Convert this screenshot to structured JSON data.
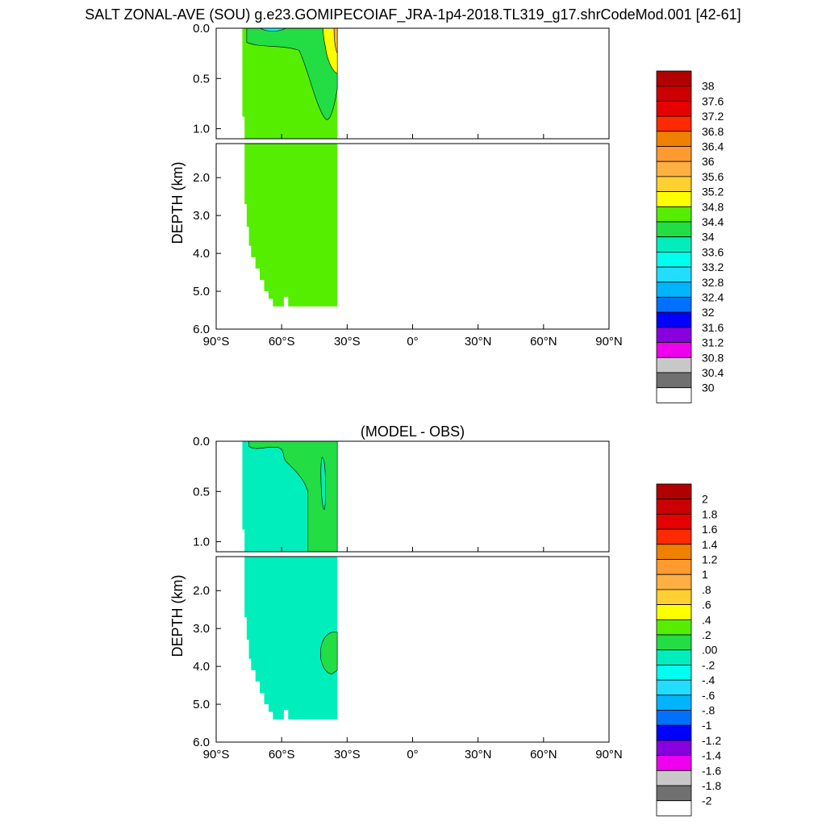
{
  "figure_title": "SALT ZONAL-AVE (SOU) g.e23.GOMIPECOIAF_JRA-1p4-2018.TL319_g17.shrCodeMod.001 [42-61]",
  "panels": [
    {
      "title": "",
      "ylabel": "DEPTH (km)",
      "x_ticks": [
        "90°S",
        "60°S",
        "30°S",
        "0°",
        "30°N",
        "60°N",
        "90°N"
      ],
      "y_ticks_upper": [
        "0.0",
        "0.5",
        "1.0"
      ],
      "y_ticks_lower": [
        "2.0",
        "3.0",
        "4.0",
        "5.0",
        "6.0"
      ],
      "colorbar_labels": [
        "38",
        "37.6",
        "37.2",
        "36.8",
        "36.4",
        "36",
        "35.6",
        "35.2",
        "34.8",
        "34.4",
        "34",
        "33.6",
        "33.2",
        "32.8",
        "32.4",
        "32",
        "31.6",
        "31.2",
        "30.8",
        "30.4",
        "30"
      ]
    },
    {
      "title": "(MODEL - OBS)",
      "ylabel": "DEPTH (km)",
      "x_ticks": [
        "90°S",
        "60°S",
        "30°S",
        "0°",
        "30°N",
        "60°N",
        "90°N"
      ],
      "y_ticks_upper": [
        "0.0",
        "0.5",
        "1.0"
      ],
      "y_ticks_lower": [
        "2.0",
        "3.0",
        "4.0",
        "5.0",
        "6.0"
      ],
      "colorbar_labels": [
        "2",
        "1.8",
        "1.6",
        "1.4",
        "1.2",
        "1",
        ".8",
        ".6",
        ".4",
        ".2",
        ".00",
        "-.2",
        "-.4",
        "-.6",
        "-.8",
        "-1",
        "-1.2",
        "-1.4",
        "-1.6",
        "-1.8",
        "-2"
      ]
    }
  ],
  "colorbar_colors": [
    "#b00000",
    "#cc0000",
    "#e60000",
    "#ff2a00",
    "#f08000",
    "#ff9a30",
    "#ffb040",
    "#ffd030",
    "#ffff00",
    "#55ee00",
    "#22dd44",
    "#00eebb",
    "#00ffee",
    "#22ddff",
    "#00b4ff",
    "#0070ff",
    "#0000ff",
    "#8800dd",
    "#ee00ee",
    "#c8c8c8",
    "#707070",
    "#ffffff"
  ],
  "chart_data": [
    {
      "type": "heatmap",
      "title": "SALT ZONAL-AVE (SOU) g.e23.GOMIPECOIAF_JRA-1p4-2018.TL319_g17.shrCodeMod.001 [42-61]",
      "xlabel": "",
      "ylabel": "DEPTH (km)",
      "xlim": [
        -90,
        90
      ],
      "ylim_upper": [
        0.0,
        1.1
      ],
      "ylim_lower": [
        1.1,
        6.0
      ],
      "contour_levels": [
        30,
        30.4,
        30.8,
        31.2,
        31.6,
        32,
        32.4,
        32.8,
        33.2,
        33.6,
        34,
        34.4,
        34.8,
        35.2,
        35.6,
        36,
        36.4,
        36.8,
        37.2,
        37.6,
        38
      ],
      "regions": [
        {
          "range": [
            34.4,
            34.8
          ],
          "description_lat": [
            -78,
            -34
          ],
          "depth_km": [
            0,
            5.4
          ]
        },
        {
          "range": [
            34.0,
            34.4
          ],
          "lat": [
            -76,
            -38
          ],
          "depth_km": [
            0,
            0.9
          ]
        },
        {
          "range": [
            34.8,
            35.6
          ],
          "lat": [
            -38,
            -34
          ],
          "depth_km": [
            0,
            0.25
          ]
        }
      ]
    },
    {
      "type": "heatmap",
      "title": "(MODEL - OBS)",
      "xlabel": "",
      "ylabel": "DEPTH (km)",
      "xlim": [
        -90,
        90
      ],
      "ylim_upper": [
        0.0,
        1.1
      ],
      "ylim_lower": [
        1.1,
        6.0
      ],
      "contour_levels": [
        -2,
        -1.8,
        -1.6,
        -1.4,
        -1.2,
        -1,
        -0.8,
        -0.6,
        -0.4,
        -0.2,
        0.0,
        0.2,
        0.4,
        0.6,
        0.8,
        1,
        1.2,
        1.4,
        1.6,
        1.8,
        2
      ],
      "regions": [
        {
          "range": [
            -0.2,
            0.0
          ],
          "lat": [
            -78,
            -34
          ],
          "depth_km": [
            0,
            5.4
          ]
        },
        {
          "range": [
            0.0,
            0.2
          ],
          "lat": [
            -60,
            -34
          ],
          "depth_km": [
            0,
            1.1
          ]
        },
        {
          "range": [
            0.0,
            0.2
          ],
          "lat": [
            -42,
            -34
          ],
          "depth_km": [
            3.1,
            4.2
          ]
        }
      ]
    }
  ]
}
